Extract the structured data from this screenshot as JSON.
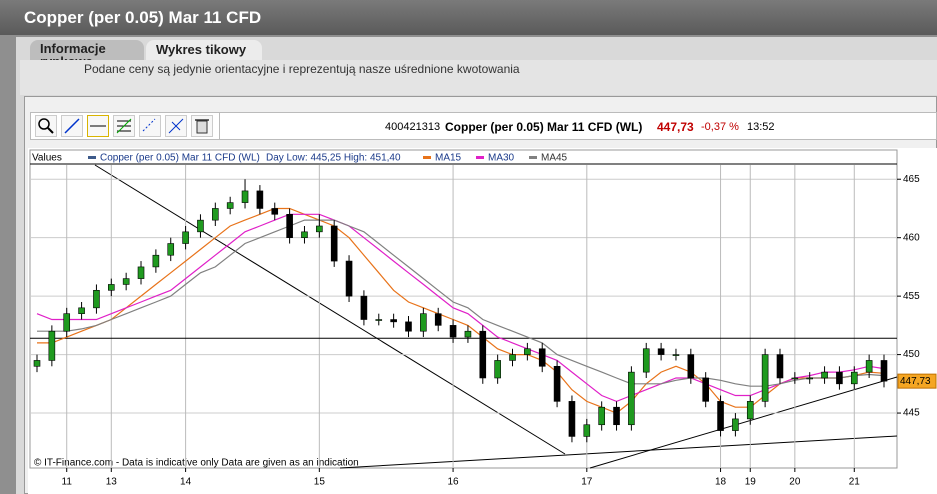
{
  "header": {
    "title": "Copper (per 0.05) Mar 11 CFD"
  },
  "tabs": [
    "Informacje rynkowe",
    "Wykres tikowy"
  ],
  "notice": "Podane ceny są jedynie orientacyjne i reprezentują nasze uśrednione kwotowania",
  "toolbar": {
    "id": "400421313",
    "instrument": "Copper (per 0.05) Mar 11 CFD (WL)",
    "price": "447,73",
    "change": "-0,37 %",
    "time": "13:52"
  },
  "chart_data": {
    "type": "candlestick",
    "legend_title": "Values",
    "day_range": "Day Low: 445,25 High: 451,40",
    "footer": "© IT-Finance.com - Data is indicative only Data are given as an indication",
    "name": "Copper (per 0.05) Mar 11 CFD (WL)",
    "color": "#3d5a8a",
    "up_color": "#1f9a1f",
    "down_color": "#000000",
    "categories": [
      null,
      null,
      "11",
      null,
      null,
      "13",
      null,
      null,
      null,
      null,
      "14",
      null,
      null,
      null,
      null,
      null,
      null,
      null,
      null,
      "15",
      null,
      null,
      null,
      null,
      null,
      null,
      null,
      null,
      "16",
      null,
      null,
      null,
      null,
      null,
      null,
      null,
      null,
      "17",
      null,
      null,
      null,
      null,
      null,
      null,
      null,
      null,
      "18",
      null,
      "19",
      null,
      null,
      "20",
      null,
      null,
      null,
      "21",
      null,
      null
    ],
    "open": [
      449,
      449.5,
      452,
      453.5,
      454,
      455.5,
      456,
      456.5,
      457.5,
      458.5,
      459.5,
      460.5,
      461.5,
      462.5,
      463,
      464,
      462.5,
      462,
      460,
      460.5,
      461,
      458,
      455,
      453,
      453,
      452.8,
      452,
      453.5,
      452.5,
      451.5,
      452,
      448,
      449.5,
      450,
      450.5,
      449,
      446,
      443,
      444,
      445.5,
      444,
      448.5,
      450.5,
      450,
      450,
      448,
      446,
      443.5,
      444.5,
      446,
      450,
      448,
      448,
      448,
      448.5,
      447.5,
      448.5,
      449.5
    ],
    "high": [
      450,
      452.5,
      454,
      454.5,
      456,
      456.5,
      457,
      458,
      459,
      460,
      461,
      462,
      463,
      463.5,
      465,
      464.5,
      463,
      462.5,
      461,
      462,
      461.5,
      458.5,
      455.5,
      453.5,
      453.5,
      453.3,
      454,
      454,
      453,
      452.5,
      452.5,
      450,
      450.5,
      451,
      451,
      449.5,
      446.5,
      444.5,
      446,
      446,
      449,
      451,
      451,
      450.5,
      450.5,
      448.5,
      446.5,
      445,
      446.5,
      450.5,
      450.5,
      448.5,
      448.5,
      449,
      449,
      449,
      450,
      450
    ],
    "low": [
      448.5,
      449,
      451.5,
      453,
      453.5,
      455,
      455.5,
      456,
      457,
      458,
      459,
      460,
      461,
      462,
      462.5,
      462,
      461.5,
      459.5,
      459.5,
      460,
      457.5,
      454.5,
      452.5,
      452.5,
      452.3,
      451.5,
      451.5,
      452,
      451,
      451,
      447.5,
      447.5,
      449,
      449.5,
      448.5,
      445.5,
      442.5,
      442.5,
      443.5,
      443.5,
      443.5,
      448,
      449.5,
      449.5,
      447.5,
      445.5,
      443,
      443,
      444,
      445.5,
      447.5,
      447.5,
      447.5,
      447.5,
      447,
      447,
      448,
      447.2
    ],
    "close": [
      449.5,
      452,
      453.5,
      454,
      455.5,
      456,
      456.5,
      457.5,
      458.5,
      459.5,
      460.5,
      461.5,
      462.5,
      463,
      464,
      462.5,
      462,
      460,
      460.5,
      461,
      458,
      455,
      453,
      453,
      452.8,
      452,
      453.5,
      452.5,
      451.5,
      452,
      448,
      449.5,
      450,
      450.5,
      449,
      446,
      443,
      444,
      445.5,
      444,
      448.5,
      450.5,
      450,
      450,
      448,
      446,
      443.5,
      444.5,
      446,
      450,
      448,
      448,
      448,
      448.5,
      447.5,
      448.5,
      449.5,
      447.73
    ],
    "series": [
      {
        "name": "MA15",
        "color": "#e8731a",
        "values": [
          451,
          451,
          451.5,
          452,
          452.5,
          453,
          454,
          455,
          456,
          457,
          458,
          459,
          460,
          461,
          461.5,
          462,
          462.5,
          462.5,
          462,
          461.5,
          461,
          460,
          458.5,
          457,
          455.5,
          454.5,
          454,
          453.5,
          453,
          452.5,
          451.5,
          450.5,
          450,
          450,
          449.5,
          448.5,
          447,
          446,
          445.5,
          445,
          446,
          447.5,
          448.5,
          449,
          448.5,
          447.5,
          446,
          445.5,
          445.5,
          446.5,
          447.5,
          448,
          448,
          448,
          448,
          448.2,
          448.5,
          448.4
        ]
      },
      {
        "name": "MA30",
        "color": "#e020c8",
        "values": [
          453.5,
          453,
          453,
          453,
          453,
          453.5,
          454,
          454.5,
          455,
          455.5,
          456.5,
          457.5,
          458.5,
          459.5,
          460.5,
          461,
          461.5,
          462,
          462,
          462,
          461.5,
          461,
          460,
          459,
          458,
          457,
          456,
          455,
          454,
          453.5,
          452.5,
          451.5,
          451,
          450.5,
          450,
          449.5,
          448.5,
          447.5,
          446.5,
          446,
          446.5,
          447,
          447.5,
          448,
          448,
          447.5,
          447,
          446.5,
          446.5,
          447,
          447.5,
          448,
          448.2,
          448.5,
          448.5,
          448.7,
          449,
          448.8
        ]
      },
      {
        "name": "MA45",
        "color": "#808080",
        "values": [
          452,
          452,
          452,
          452.2,
          452.5,
          453,
          453.5,
          454,
          454.5,
          455,
          456,
          457,
          457.5,
          458.5,
          459.5,
          460,
          460.5,
          461,
          461.5,
          461.5,
          461.5,
          461,
          460.5,
          459.5,
          458.5,
          457.5,
          456.5,
          455.5,
          454.5,
          454,
          453,
          452.5,
          452,
          451.5,
          451,
          450,
          449.5,
          449,
          448.5,
          448,
          447.5,
          447.5,
          447.5,
          447.8,
          448,
          448,
          447.8,
          447.5,
          447.3,
          447.3,
          447.5,
          447.8,
          448,
          448,
          448,
          448.2,
          448.3,
          448.2
        ]
      }
    ],
    "day_high_line": 451.4,
    "last_price": {
      "value": 447.73,
      "label": "447,73"
    },
    "ylim": [
      440.3,
      467.5
    ],
    "yticks": [
      445,
      450,
      455,
      460,
      465
    ],
    "grid": true
  }
}
